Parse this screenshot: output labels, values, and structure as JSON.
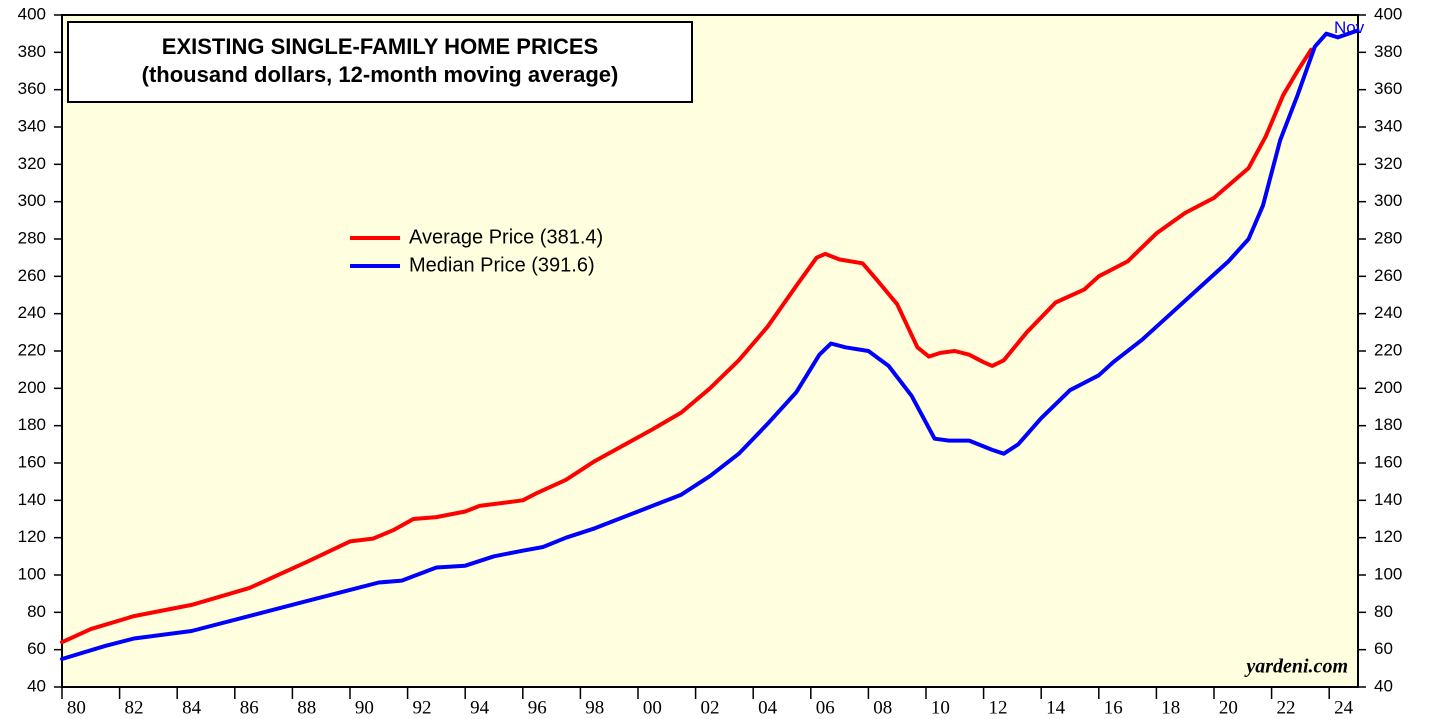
{
  "chart_data": {
    "type": "line",
    "title": "EXISTING SINGLE-FAMILY HOME PRICES",
    "subtitle": "(thousand dollars, 12-month moving average)",
    "annotations": [
      "Nov",
      "yardeni.com"
    ],
    "xlim": [
      1980,
      2025
    ],
    "ylim": [
      40,
      400
    ],
    "yticks": [
      40,
      60,
      80,
      100,
      120,
      140,
      160,
      180,
      200,
      220,
      240,
      260,
      280,
      300,
      320,
      340,
      360,
      380,
      400
    ],
    "xticks": [
      {
        "value": 1980,
        "label": "80"
      },
      {
        "value": 1982,
        "label": "82"
      },
      {
        "value": 1984,
        "label": "84"
      },
      {
        "value": 1986,
        "label": "86"
      },
      {
        "value": 1988,
        "label": "88"
      },
      {
        "value": 1990,
        "label": "90"
      },
      {
        "value": 1992,
        "label": "92"
      },
      {
        "value": 1994,
        "label": "94"
      },
      {
        "value": 1996,
        "label": "96"
      },
      {
        "value": 1998,
        "label": "98"
      },
      {
        "value": 2000,
        "label": "00"
      },
      {
        "value": 2002,
        "label": "02"
      },
      {
        "value": 2004,
        "label": "04"
      },
      {
        "value": 2006,
        "label": "06"
      },
      {
        "value": 2008,
        "label": "08"
      },
      {
        "value": 2010,
        "label": "10"
      },
      {
        "value": 2012,
        "label": "12"
      },
      {
        "value": 2014,
        "label": "14"
      },
      {
        "value": 2016,
        "label": "16"
      },
      {
        "value": 2018,
        "label": "18"
      },
      {
        "value": 2020,
        "label": "20"
      },
      {
        "value": 2022,
        "label": "22"
      },
      {
        "value": 2024,
        "label": "24"
      }
    ],
    "background": "#ffffe0",
    "series": [
      {
        "name": "Average Price (381.4)",
        "color": "#ff0000",
        "x": [
          1980,
          1981,
          1982.5,
          1984.5,
          1986.5,
          1988.5,
          1990,
          1990.8,
          1991.5,
          1992.2,
          1993,
          1994,
          1994.5,
          1996,
          1996.5,
          1997.5,
          1998.5,
          2000.5,
          2001.5,
          2002.5,
          2003.5,
          2004.5,
          2005.5,
          2006.2,
          2006.5,
          2007,
          2007.8,
          2008.3,
          2009,
          2009.7,
          2010.1,
          2010.5,
          2011,
          2011.5,
          2012,
          2012.3,
          2012.7,
          2013.5,
          2014.5,
          2015.5,
          2016,
          2017,
          2018,
          2019,
          2020,
          2020.6,
          2021.2,
          2021.8,
          2022.4,
          2022.9,
          2023.37
        ],
        "values": [
          64,
          71,
          78,
          84,
          93,
          107,
          118,
          119.5,
          124,
          130,
          131,
          134,
          137,
          140,
          144,
          151,
          161,
          178,
          187,
          200,
          215,
          233,
          255,
          270,
          272,
          269,
          267,
          258,
          245,
          222,
          217,
          219,
          220,
          218,
          214,
          212,
          215,
          230,
          246,
          253,
          260,
          268,
          283,
          294,
          302,
          310,
          318,
          335,
          357,
          370,
          381.4
        ]
      },
      {
        "name": "Median Price (391.6)",
        "color": "#0000ff",
        "x": [
          1980,
          1981.5,
          1982.5,
          1984.5,
          1986.5,
          1988.5,
          1990,
          1991,
          1991.8,
          1993,
          1994,
          1995,
          1996,
          1996.7,
          1997.5,
          1998.5,
          2000.5,
          2001.5,
          2002.5,
          2003.5,
          2004.5,
          2005.5,
          2006.3,
          2006.7,
          2007.2,
          2008,
          2008.7,
          2009.5,
          2010.3,
          2010.8,
          2011.5,
          2012.3,
          2012.7,
          2013.2,
          2014,
          2015,
          2016,
          2016.5,
          2017.5,
          2018.5,
          2019.5,
          2020.5,
          2021.2,
          2021.7,
          2022.3,
          2022.9,
          2023.5,
          2023.9,
          2024.3,
          2024.97
        ],
        "values": [
          55,
          62,
          66,
          70,
          78,
          86,
          92,
          96,
          97,
          104,
          105,
          110,
          113,
          115,
          120,
          125,
          137,
          143,
          153,
          165,
          181,
          198,
          218,
          224,
          222,
          220,
          212,
          196,
          173,
          172,
          172,
          167,
          165,
          170,
          184,
          199,
          207,
          214,
          226,
          240,
          254,
          268,
          280,
          298,
          333,
          357,
          383,
          390,
          388,
          391.6
        ]
      }
    ]
  }
}
